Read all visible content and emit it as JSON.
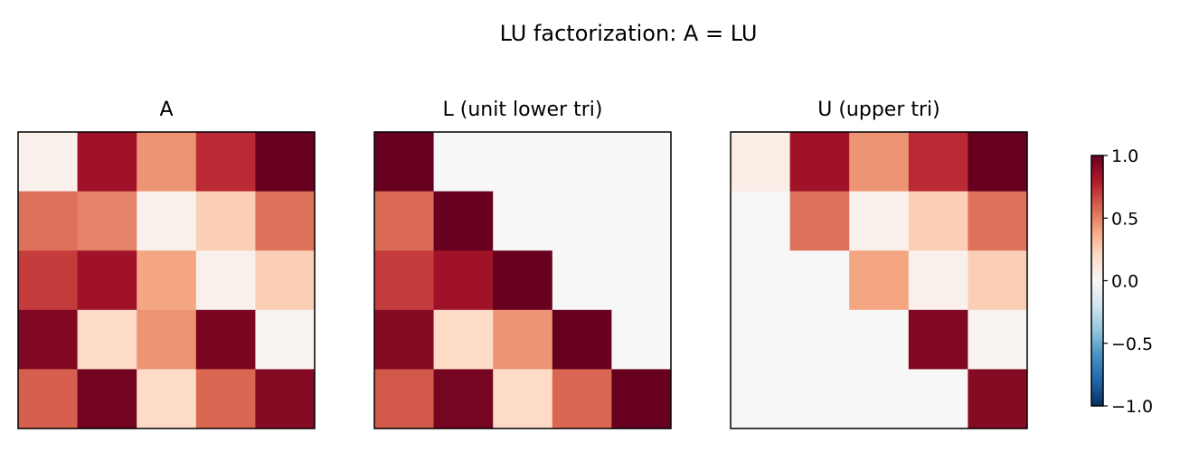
{
  "chart_data": {
    "type": "heatmap",
    "title": "LU factorization: A = LU",
    "colormap": "RdBu_r",
    "clim": [
      -1.0,
      1.0
    ],
    "panels": [
      {
        "title": "A",
        "values": [
          [
            0.05,
            0.85,
            0.45,
            0.75,
            1.0
          ],
          [
            0.55,
            0.5,
            0.05,
            0.25,
            0.55
          ],
          [
            0.7,
            0.85,
            0.4,
            0.05,
            0.25
          ],
          [
            0.93,
            0.2,
            0.45,
            0.95,
            0.02
          ],
          [
            0.6,
            0.97,
            0.2,
            0.58,
            0.92
          ]
        ]
      },
      {
        "title": "L (unit lower tri)",
        "values": [
          [
            1.0,
            0,
            0,
            0,
            0
          ],
          [
            0.57,
            1.0,
            0,
            0,
            0
          ],
          [
            0.7,
            0.85,
            1.0,
            0,
            0
          ],
          [
            0.92,
            0.2,
            0.45,
            1.0,
            0
          ],
          [
            0.62,
            0.96,
            0.2,
            0.58,
            1.0
          ]
        ]
      },
      {
        "title": "U (upper tri)",
        "values": [
          [
            0.07,
            0.85,
            0.45,
            0.75,
            1.0
          ],
          [
            0,
            0.55,
            0.05,
            0.25,
            0.55
          ],
          [
            0,
            0,
            0.4,
            0.05,
            0.25
          ],
          [
            0,
            0,
            0,
            0.93,
            0.03
          ],
          [
            0,
            0,
            0,
            0,
            0.92
          ]
        ]
      }
    ],
    "colorbar": {
      "ticks": [
        1.0,
        0.5,
        0.0,
        -0.5,
        -1.0
      ],
      "tick_labels": [
        "1.0",
        "0.5",
        "0.0",
        "−0.5",
        "−1.0"
      ]
    }
  }
}
